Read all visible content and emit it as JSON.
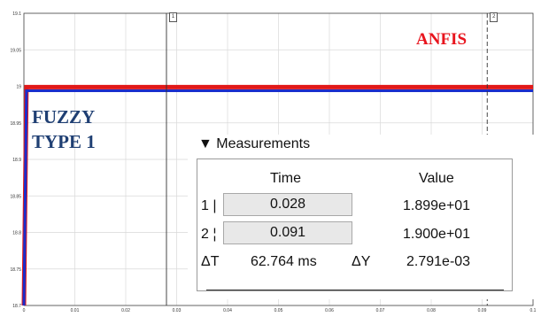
{
  "chart_data": {
    "type": "line",
    "xlim": [
      0,
      0.1
    ],
    "ylim": [
      18.7,
      19.1
    ],
    "x_ticks": [
      "0",
      "0.01",
      "0.02",
      "0.03",
      "0.04",
      "0.05",
      "0.06",
      "0.07",
      "0.08",
      "0.09",
      "0.1"
    ],
    "y_ticks": [
      "19.1",
      "19.05",
      "19",
      "18.95",
      "18.9",
      "18.85",
      "18.8",
      "18.75",
      "18.7"
    ],
    "grid": true,
    "series": [
      {
        "name": "ANFIS",
        "color": "#e11919",
        "x": [
          0,
          0.0005,
          0.1
        ],
        "y": [
          18.7,
          18.999,
          18.999
        ]
      },
      {
        "name": "FUZZY TYPE 1",
        "color": "#1a2ecc",
        "x": [
          0,
          0.0005,
          0.1
        ],
        "y": [
          18.7,
          18.994,
          18.994
        ]
      }
    ],
    "annotations": [
      {
        "text": "ANFIS",
        "color": "#e8141d"
      },
      {
        "text": [
          "FUZZY",
          "TYPE 1"
        ],
        "color": "#1f3f73"
      }
    ],
    "cursors": [
      {
        "id": "1",
        "x": 0.028,
        "style": "solid"
      },
      {
        "id": "2",
        "x": 0.091,
        "style": "dashed"
      }
    ]
  },
  "measurements": {
    "title": "▼ Measurements",
    "col_time": "Time",
    "col_value": "Value",
    "rows": [
      {
        "label": "1 |",
        "time": "0.028",
        "value": "1.899e+01"
      },
      {
        "label": "2 ¦",
        "time": "0.091",
        "value": "1.900e+01"
      }
    ],
    "delta_t_label": "ΔT",
    "delta_t": "62.764 ms",
    "delta_y_label": "ΔY",
    "delta_y": "2.791e-03"
  }
}
